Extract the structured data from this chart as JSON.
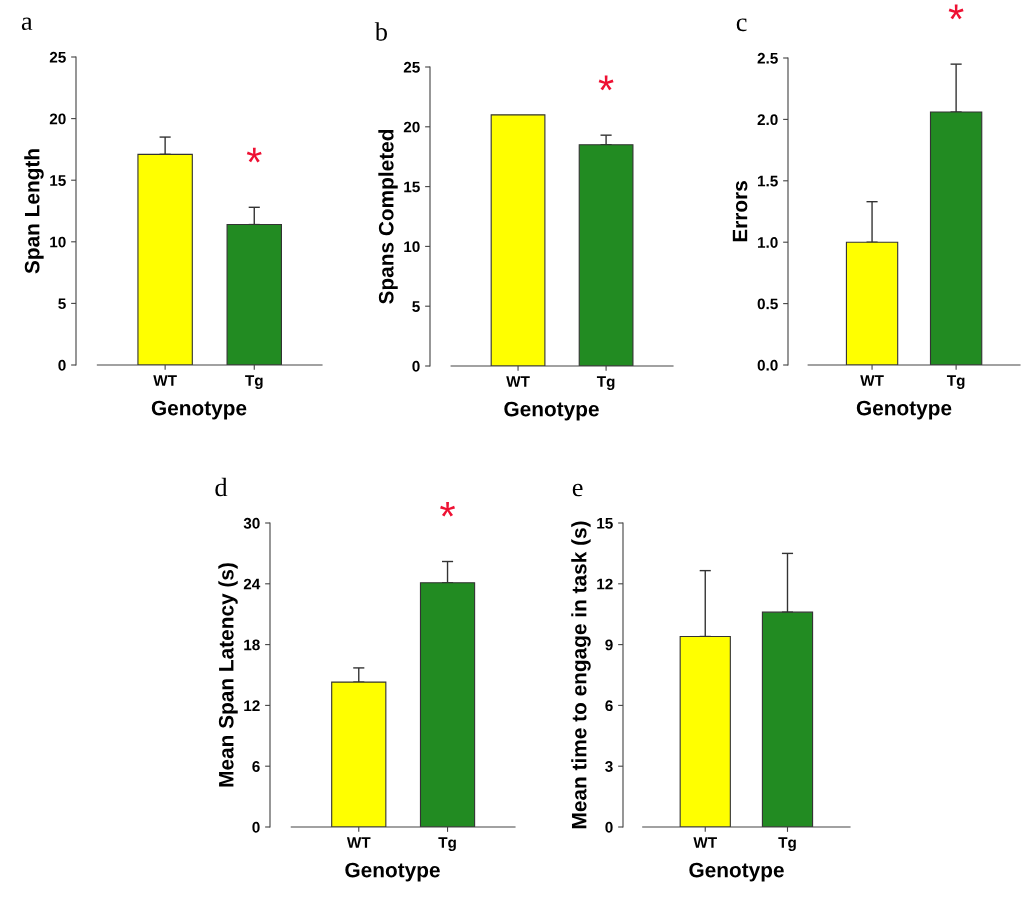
{
  "chart_data": [
    {
      "type": "bar",
      "title": "a",
      "categories": [
        "WT",
        "Tg"
      ],
      "values": [
        17.1,
        11.4
      ],
      "colors": [
        "#ffff00",
        "#228b22"
      ],
      "errors": [
        [
          17.1,
          18.5
        ],
        [
          11.4,
          12.8
        ]
      ],
      "xlabel": "Genotype",
      "ylabel": "Span Length",
      "ylim": [
        0,
        25
      ],
      "yticks": [
        0,
        5,
        10,
        15,
        20,
        25
      ],
      "annotations": [
        "*"
      ]
    },
    {
      "type": "bar",
      "title": "b",
      "categories": [
        "WT",
        "Tg"
      ],
      "values": [
        21.0,
        18.5
      ],
      "colors": [
        "#ffff00",
        "#228b22"
      ],
      "errors": [
        null,
        [
          18.5,
          19.3
        ]
      ],
      "xlabel": "Genotype",
      "ylabel": "Spans Completed",
      "ylim": [
        0,
        25
      ],
      "yticks": [
        0,
        5,
        10,
        15,
        20,
        25
      ],
      "annotations": [
        "*"
      ]
    },
    {
      "type": "bar",
      "title": "c",
      "categories": [
        "WT",
        "Tg"
      ],
      "values": [
        1.0,
        2.06
      ],
      "colors": [
        "#ffff00",
        "#228b22"
      ],
      "errors": [
        [
          1.0,
          1.33
        ],
        [
          2.06,
          2.45
        ]
      ],
      "xlabel": "Genotype",
      "ylabel": "Errors",
      "ylim": [
        0,
        2.5
      ],
      "yticks": [
        {
          "value": 0,
          "label": "0.0"
        },
        {
          "value": 0.5,
          "label": "0.5"
        },
        {
          "value": 1,
          "label": "1.0"
        },
        {
          "value": 1.5,
          "label": "1.5"
        },
        {
          "value": 2,
          "label": "2.0"
        },
        {
          "value": 2.5,
          "label": "2.5"
        }
      ],
      "annotations": [
        "*"
      ]
    },
    {
      "type": "bar",
      "title": "d",
      "categories": [
        "WT",
        "Tg"
      ],
      "values": [
        14.3,
        24.1
      ],
      "colors": [
        "#ffff00",
        "#228b22"
      ],
      "errors": [
        [
          14.3,
          15.7
        ],
        [
          24.1,
          26.2
        ]
      ],
      "xlabel": "Genotype",
      "ylabel": "Mean Span Latency (s)",
      "ylim": [
        0,
        30
      ],
      "yticks": [
        0,
        6,
        12,
        18,
        24,
        30
      ],
      "annotations": [
        "*"
      ]
    },
    {
      "type": "bar",
      "title": "e",
      "categories": [
        "WT",
        "Tg"
      ],
      "values": [
        9.4,
        10.6
      ],
      "colors": [
        "#ffff00",
        "#228b22"
      ],
      "errors": [
        [
          9.4,
          12.65
        ],
        [
          10.6,
          13.5
        ]
      ],
      "xlabel": "Genotype",
      "ylabel": "Mean time to engage in task (s)",
      "ylim": [
        0,
        15
      ],
      "yticks": [
        0,
        3,
        6,
        9,
        12,
        15
      ]
    }
  ]
}
